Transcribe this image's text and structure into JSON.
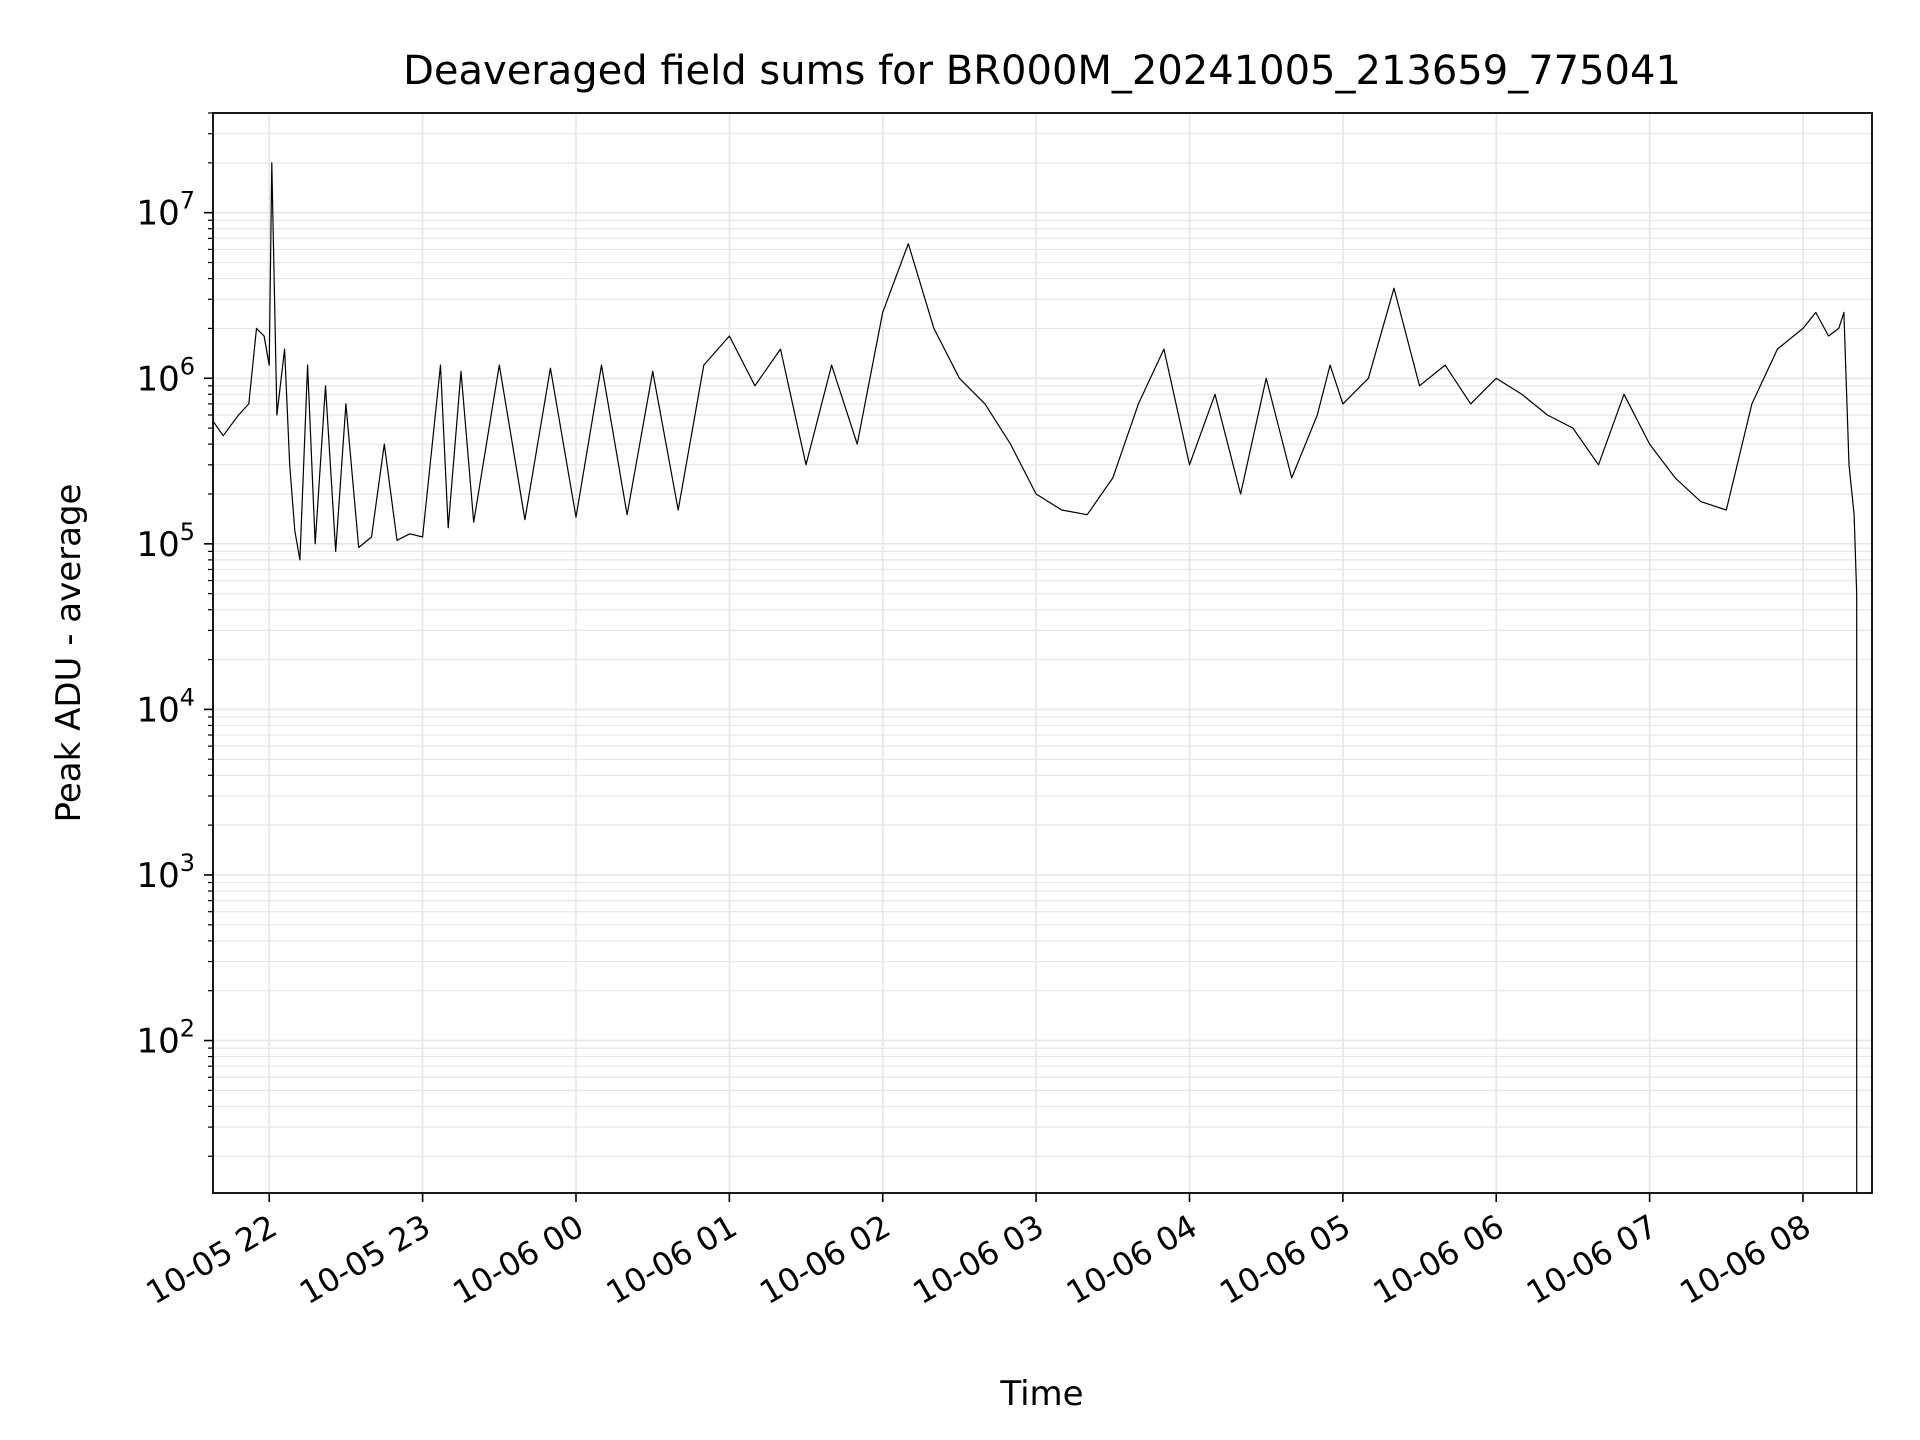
{
  "chart_data": {
    "type": "line",
    "title": "Deaveraged field sums for BR000M_20241005_213659_775041",
    "xlabel": "Time",
    "ylabel": "Peak ADU - average",
    "yscale": "log",
    "grid": true,
    "line_color": "#000000",
    "grid_color": "#e6e6e6",
    "xlim": [
      "2024-10-05 21:38",
      "2024-10-06 08:27"
    ],
    "ylim": [
      12,
      40000000
    ],
    "x_ticks": [
      {
        "value": "2024-10-05 22:00",
        "label": "10-05 22"
      },
      {
        "value": "2024-10-05 23:00",
        "label": "10-05 23"
      },
      {
        "value": "2024-10-06 00:00",
        "label": "10-06 00"
      },
      {
        "value": "2024-10-06 01:00",
        "label": "10-06 01"
      },
      {
        "value": "2024-10-06 02:00",
        "label": "10-06 02"
      },
      {
        "value": "2024-10-06 03:00",
        "label": "10-06 03"
      },
      {
        "value": "2024-10-06 04:00",
        "label": "10-06 04"
      },
      {
        "value": "2024-10-06 05:00",
        "label": "10-06 05"
      },
      {
        "value": "2024-10-06 06:00",
        "label": "10-06 06"
      },
      {
        "value": "2024-10-06 07:00",
        "label": "10-06 07"
      },
      {
        "value": "2024-10-06 08:00",
        "label": "10-06 08"
      }
    ],
    "y_ticks": [
      {
        "value": 100,
        "base": "10",
        "exp": "2"
      },
      {
        "value": 1000,
        "base": "10",
        "exp": "3"
      },
      {
        "value": 10000,
        "base": "10",
        "exp": "4"
      },
      {
        "value": 100000,
        "base": "10",
        "exp": "5"
      },
      {
        "value": 1000000,
        "base": "10",
        "exp": "6"
      },
      {
        "value": 10000000,
        "base": "10",
        "exp": "7"
      }
    ],
    "series": [
      {
        "x": [
          "2024-10-05 21:38",
          "2024-10-05 21:42",
          "2024-10-05 21:45",
          "2024-10-05 21:48",
          "2024-10-05 21:52",
          "2024-10-05 21:55",
          "2024-10-05 21:58",
          "2024-10-05 22:00",
          "2024-10-05 22:01",
          "2024-10-05 22:03",
          "2024-10-05 22:06",
          "2024-10-05 22:08",
          "2024-10-05 22:10",
          "2024-10-05 22:12",
          "2024-10-05 22:15",
          "2024-10-05 22:18",
          "2024-10-05 22:22",
          "2024-10-05 22:26",
          "2024-10-05 22:30",
          "2024-10-05 22:35",
          "2024-10-05 22:40",
          "2024-10-05 22:45",
          "2024-10-05 22:50",
          "2024-10-05 22:55",
          "2024-10-05 23:00",
          "2024-10-05 23:07",
          "2024-10-05 23:10",
          "2024-10-05 23:15",
          "2024-10-05 23:20",
          "2024-10-05 23:30",
          "2024-10-05 23:40",
          "2024-10-05 23:50",
          "2024-10-06 00:00",
          "2024-10-06 00:10",
          "2024-10-06 00:20",
          "2024-10-06 00:30",
          "2024-10-06 00:40",
          "2024-10-06 00:50",
          "2024-10-06 01:00",
          "2024-10-06 01:10",
          "2024-10-06 01:20",
          "2024-10-06 01:30",
          "2024-10-06 01:40",
          "2024-10-06 01:50",
          "2024-10-06 02:00",
          "2024-10-06 02:10",
          "2024-10-06 02:20",
          "2024-10-06 02:30",
          "2024-10-06 02:40",
          "2024-10-06 02:50",
          "2024-10-06 03:00",
          "2024-10-06 03:10",
          "2024-10-06 03:20",
          "2024-10-06 03:30",
          "2024-10-06 03:40",
          "2024-10-06 03:50",
          "2024-10-06 04:00",
          "2024-10-06 04:10",
          "2024-10-06 04:20",
          "2024-10-06 04:30",
          "2024-10-06 04:40",
          "2024-10-06 04:50",
          "2024-10-06 04:55",
          "2024-10-06 05:00",
          "2024-10-06 05:10",
          "2024-10-06 05:20",
          "2024-10-06 05:30",
          "2024-10-06 05:40",
          "2024-10-06 05:50",
          "2024-10-06 06:00",
          "2024-10-06 06:10",
          "2024-10-06 06:20",
          "2024-10-06 06:30",
          "2024-10-06 06:40",
          "2024-10-06 06:50",
          "2024-10-06 07:00",
          "2024-10-06 07:10",
          "2024-10-06 07:20",
          "2024-10-06 07:30",
          "2024-10-06 07:40",
          "2024-10-06 07:50",
          "2024-10-06 08:00",
          "2024-10-06 08:05",
          "2024-10-06 08:10",
          "2024-10-06 08:14",
          "2024-10-06 08:16",
          "2024-10-06 08:18",
          "2024-10-06 08:20",
          "2024-10-06 08:21",
          "2024-10-06 08:21"
        ],
        "y": [
          550000,
          450000,
          520000,
          600000,
          700000,
          2000000,
          1800000,
          1200000,
          20000000,
          600000,
          1500000,
          300000,
          120000,
          80000,
          1200000,
          100000,
          900000,
          90000,
          700000,
          95000,
          110000,
          400000,
          105000,
          115000,
          110000,
          1200000,
          125000,
          1100000,
          135000,
          1200000,
          140000,
          1150000,
          145000,
          1200000,
          150000,
          1100000,
          160000,
          1200000,
          1800000,
          900000,
          1500000,
          300000,
          1200000,
          400000,
          2500000,
          6500000,
          2000000,
          1000000,
          700000,
          400000,
          200000,
          160000,
          150000,
          250000,
          700000,
          1500000,
          300000,
          800000,
          200000,
          1000000,
          250000,
          600000,
          1200000,
          700000,
          1000000,
          3500000,
          900000,
          1200000,
          700000,
          1000000,
          800000,
          600000,
          500000,
          300000,
          800000,
          400000,
          250000,
          180000,
          160000,
          700000,
          1500000,
          2000000,
          2500000,
          1800000,
          2000000,
          2500000,
          300000,
          150000,
          50000,
          12
        ]
      }
    ]
  }
}
